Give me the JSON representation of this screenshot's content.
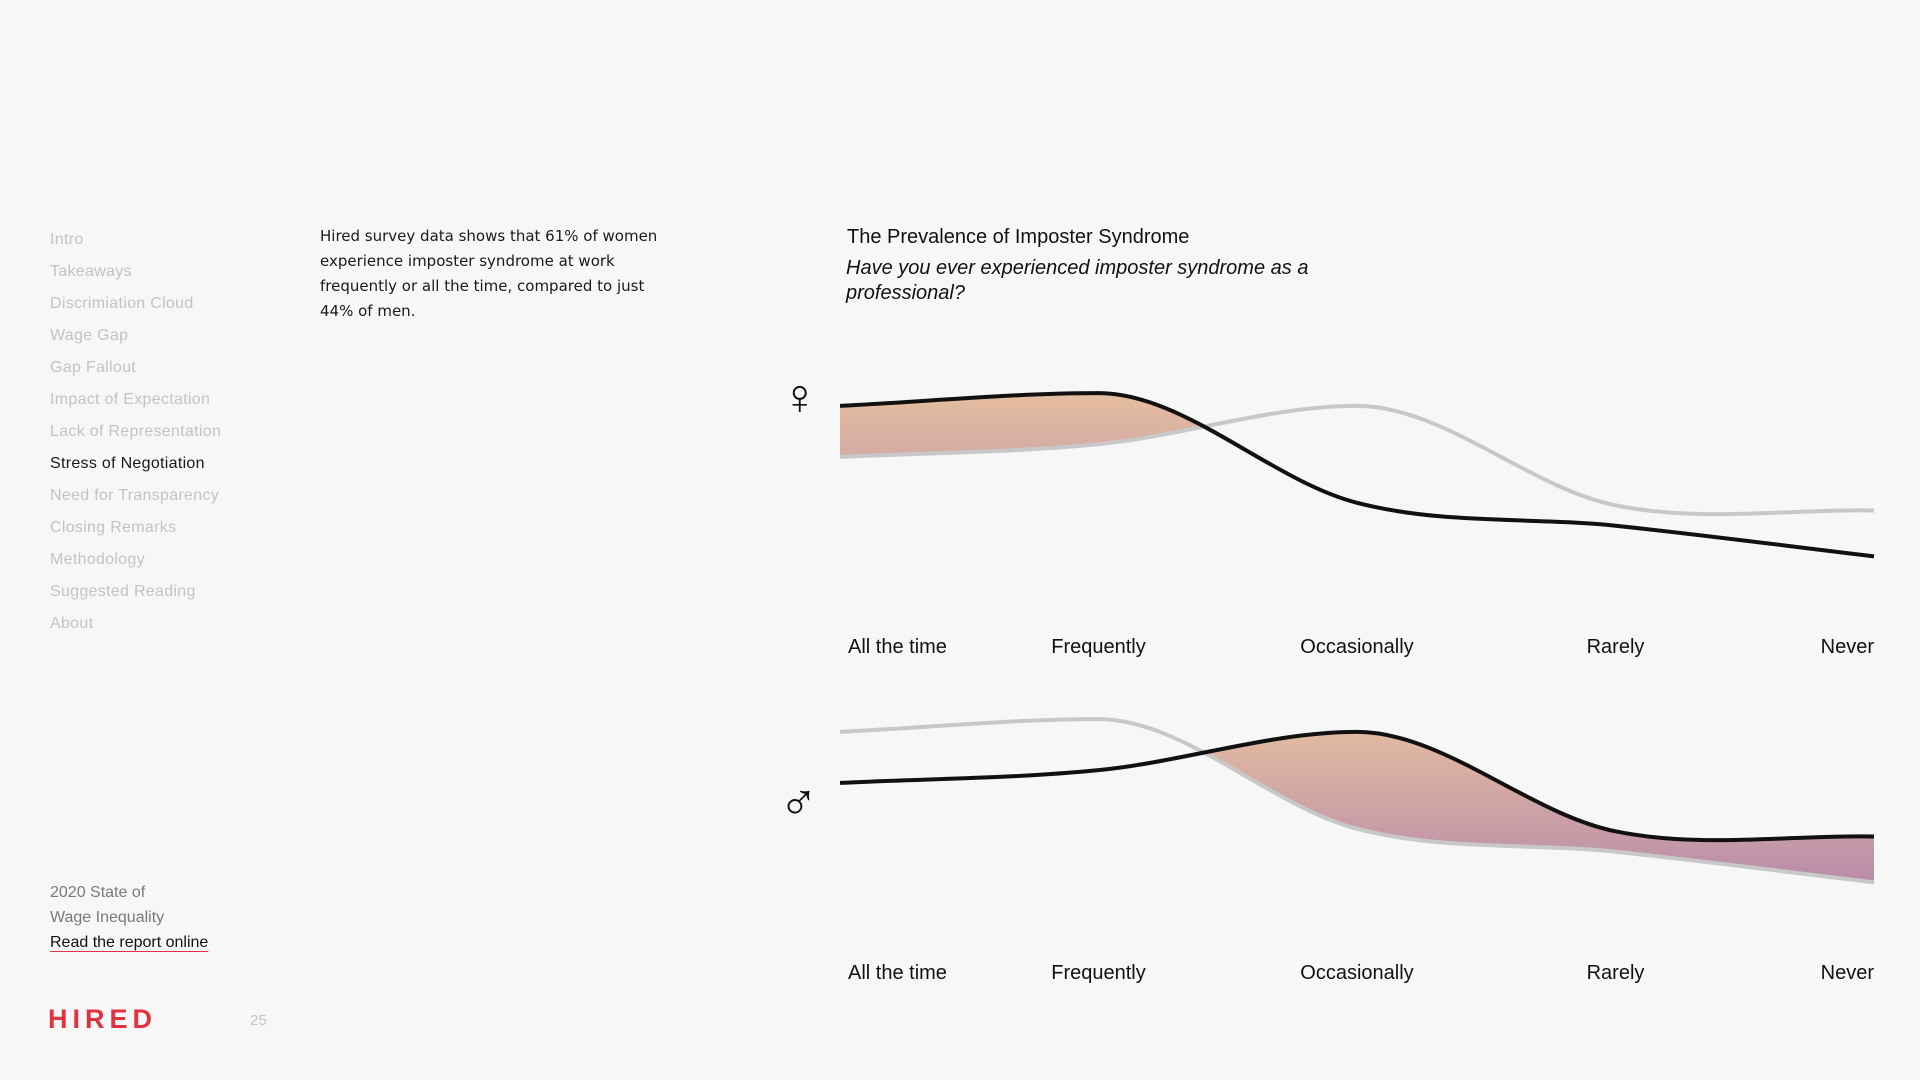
{
  "nav": {
    "items": [
      "Intro",
      "Takeaways",
      "Discrimiation Cloud",
      "Wage Gap",
      "Gap Fallout",
      "Impact of Expectation",
      "Lack of Representation",
      "Stress of Negotiation",
      "Need for Transparency",
      "Closing Remarks",
      "Methodology",
      "Suggested Reading",
      "About"
    ],
    "active": "Stress of Negotiation"
  },
  "footer": {
    "report_line1": "2020 State of",
    "report_line2": "Wage Inequality",
    "report_link": "Read the report online",
    "logo": "HIRED",
    "page_number": "25"
  },
  "description": "Hired survey data shows that 61% of women experience imposter syndrome at work frequently or all the time, compared to just 44% of men.",
  "colors": {
    "gradient_top": "#fcd69a",
    "gradient_bottom": "#8f5fb3",
    "highlight_line": "#111111",
    "comparison_line": "#c8c8c8",
    "brand": "#e0323f"
  },
  "chart_data": [
    {
      "type": "area",
      "title": "The Prevalence of Imposter Syndrome",
      "subtitle": "Have you ever experienced imposter syndrome as a professional?",
      "symbol": "♀",
      "categories": [
        "All the time",
        "Frequently",
        "Occasionally",
        "Rarely",
        "Never"
      ],
      "series": [
        {
          "values": [
            0.82,
            0.87,
            0.44,
            0.35,
            0.23
          ],
          "color": "#111111",
          "highlight": true
        },
        {
          "values": [
            0.62,
            0.67,
            0.82,
            0.43,
            0.41
          ],
          "color": "#c8c8c8",
          "highlight": false
        }
      ],
      "ylim": [
        0,
        1
      ]
    },
    {
      "type": "area",
      "symbol": "♂",
      "categories": [
        "All the time",
        "Frequently",
        "Occasionally",
        "Rarely",
        "Never"
      ],
      "series": [
        {
          "values": [
            0.62,
            0.67,
            0.82,
            0.43,
            0.41
          ],
          "color": "#111111",
          "highlight": true
        },
        {
          "values": [
            0.82,
            0.87,
            0.44,
            0.35,
            0.23
          ],
          "color": "#c8c8c8",
          "highlight": false
        }
      ],
      "ylim": [
        0,
        1
      ]
    }
  ]
}
